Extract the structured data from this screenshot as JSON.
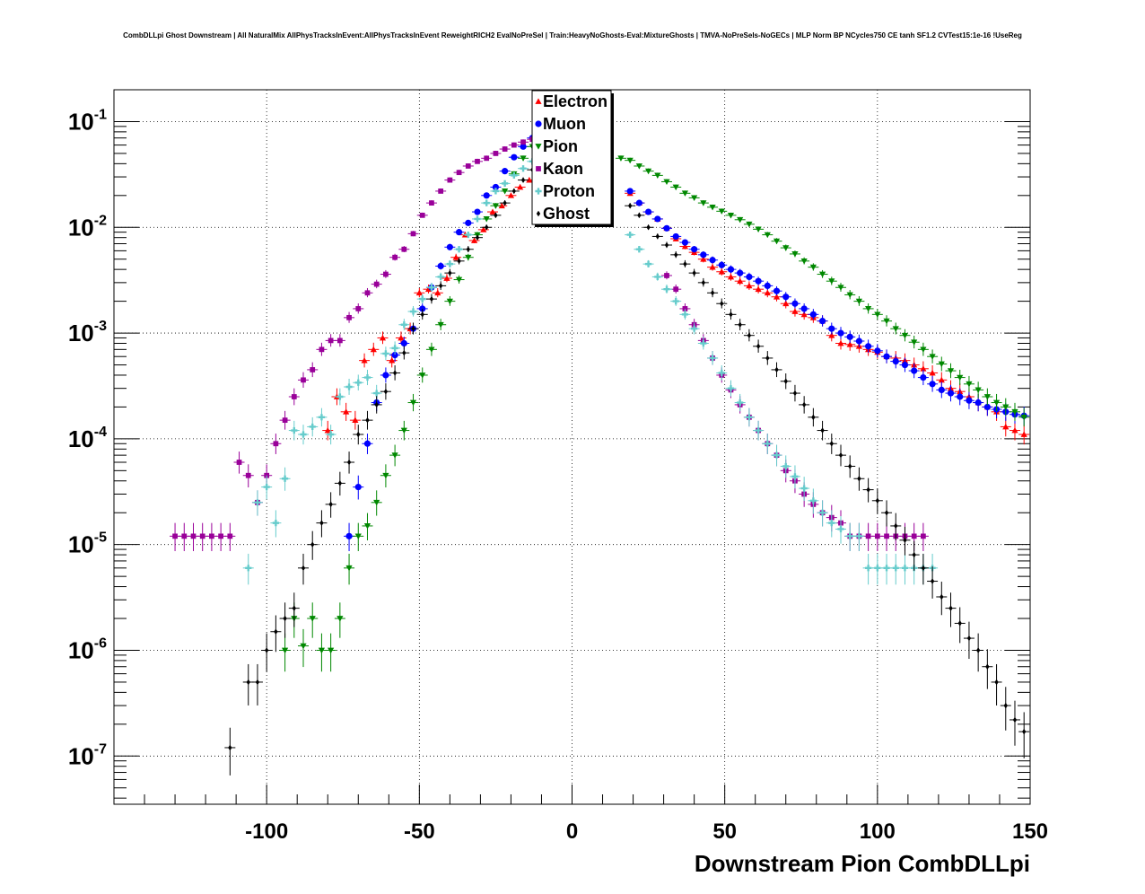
{
  "chart_data": {
    "type": "scatter",
    "title": "CombDLLpi Ghost Downstream | All NaturalMix AllPhysTracksInEvent:AllPhysTracksInEvent ReweightRICH2 EvalNoPreSel | Train:HeavyNoGhosts-Eval:MixtureGhosts | TMVA-NoPreSels-NoGECs | MLP Norm BP NCycles750 CE tanh SF1.2 CVTest15:1e-16 !UseReg",
    "xlabel": "Downstream Pion CombDLLpi",
    "ylabel": "",
    "xlim": [
      -150,
      150
    ],
    "ylim": [
      3.5e-08,
      0.2
    ],
    "y_scale": "log",
    "grid": true,
    "legend_position": "top-center",
    "x_ticks": [
      {
        "value": -100,
        "label": "-100"
      },
      {
        "value": -50,
        "label": "-50"
      },
      {
        "value": 0,
        "label": "0"
      },
      {
        "value": 50,
        "label": "50"
      },
      {
        "value": 100,
        "label": "100"
      },
      {
        "value": 150,
        "label": "150"
      }
    ],
    "y_ticks": [
      {
        "value": 1e-07,
        "base": "10",
        "exp": "-7"
      },
      {
        "value": 1e-06,
        "base": "10",
        "exp": "-6"
      },
      {
        "value": 1e-05,
        "base": "10",
        "exp": "-5"
      },
      {
        "value": 0.0001,
        "base": "10",
        "exp": "-4"
      },
      {
        "value": 0.001,
        "base": "10",
        "exp": "-3"
      },
      {
        "value": 0.01,
        "base": "10",
        "exp": "-2"
      },
      {
        "value": 0.1,
        "base": "10",
        "exp": "-1"
      }
    ],
    "series": [
      {
        "name": "Electron",
        "color": "#ff0000",
        "marker": "triangle-up",
        "x": [
          -80,
          -77,
          -74,
          -71,
          -68,
          -65,
          -62,
          -59,
          -56,
          -53,
          -50,
          -47,
          -44,
          -41,
          -38,
          -35,
          -32,
          -29,
          -26,
          -23,
          -20,
          -17,
          -14,
          -11,
          19,
          22,
          25,
          28,
          31,
          34,
          37,
          40,
          43,
          46,
          49,
          52,
          55,
          58,
          61,
          64,
          67,
          70,
          73,
          76,
          79,
          82,
          85,
          88,
          91,
          94,
          97,
          100,
          103,
          106,
          109,
          112,
          115,
          118,
          121,
          124,
          127,
          130,
          133,
          136,
          139,
          142,
          145,
          148
        ],
        "y": [
          0.00012,
          0.00025,
          0.00018,
          0.00015,
          0.00055,
          0.0007,
          0.0009,
          0.00055,
          0.0009,
          0.0011,
          0.0024,
          0.0026,
          0.0024,
          0.0033,
          0.0052,
          0.0085,
          0.0075,
          0.0095,
          0.014,
          0.016,
          0.02,
          0.024,
          0.028,
          0.032,
          0.021,
          0.017,
          0.014,
          0.012,
          0.0098,
          0.0078,
          0.0066,
          0.0058,
          0.005,
          0.0042,
          0.0038,
          0.0034,
          0.0031,
          0.0028,
          0.0026,
          0.0024,
          0.0022,
          0.0019,
          0.0016,
          0.0015,
          0.0014,
          0.0013,
          0.00095,
          0.0008,
          0.00078,
          0.00075,
          0.0007,
          0.00066,
          0.0006,
          0.00058,
          0.00055,
          0.0005,
          0.00046,
          0.00042,
          0.00036,
          0.0003,
          0.00028,
          0.00025,
          0.00022,
          0.0002,
          0.00018,
          0.00013,
          0.00012,
          0.00011
        ]
      },
      {
        "name": "Muon",
        "color": "#0000ff",
        "marker": "circle",
        "x": [
          -73,
          -70,
          -67,
          -64,
          -61,
          -58,
          -55,
          -52,
          -49,
          -46,
          -43,
          -40,
          -37,
          -34,
          -31,
          -28,
          -25,
          -22,
          -19,
          -16,
          -13,
          -10,
          19,
          22,
          25,
          28,
          31,
          34,
          37,
          40,
          43,
          46,
          49,
          52,
          55,
          58,
          61,
          64,
          67,
          70,
          73,
          76,
          79,
          82,
          85,
          88,
          91,
          94,
          97,
          100,
          103,
          106,
          109,
          112,
          115,
          118,
          121,
          124,
          127,
          130,
          133,
          136,
          139,
          142,
          145,
          148
        ],
        "y": [
          1.2e-05,
          3.5e-05,
          9e-05,
          0.00022,
          0.0004,
          0.00062,
          0.0008,
          0.0011,
          0.0017,
          0.0027,
          0.0043,
          0.0065,
          0.009,
          0.011,
          0.014,
          0.02,
          0.024,
          0.034,
          0.046,
          0.058,
          0.07,
          0.08,
          0.022,
          0.017,
          0.014,
          0.012,
          0.0098,
          0.0082,
          0.0072,
          0.0062,
          0.0055,
          0.0049,
          0.0044,
          0.004,
          0.0037,
          0.0034,
          0.0031,
          0.0028,
          0.0025,
          0.0022,
          0.0019,
          0.0017,
          0.0015,
          0.0013,
          0.0011,
          0.001,
          0.00092,
          0.00084,
          0.00075,
          0.00068,
          0.0006,
          0.00054,
          0.0005,
          0.00044,
          0.00038,
          0.00033,
          0.00029,
          0.00027,
          0.00025,
          0.00023,
          0.00022,
          0.0002,
          0.00019,
          0.00018,
          0.00017,
          0.000165
        ]
      },
      {
        "name": "Pion",
        "color": "#008800",
        "marker": "triangle-down",
        "x": [
          -94,
          -91,
          -88,
          -85,
          -82,
          -79,
          -76,
          -73,
          -70,
          -67,
          -64,
          -61,
          -58,
          -55,
          -52,
          -49,
          -46,
          -43,
          -40,
          -37,
          -34,
          -31,
          -28,
          -25,
          -22,
          -19,
          -16,
          -13,
          -10,
          16,
          19,
          22,
          25,
          28,
          31,
          34,
          37,
          40,
          43,
          46,
          49,
          52,
          55,
          58,
          61,
          64,
          67,
          70,
          73,
          76,
          79,
          82,
          85,
          88,
          91,
          94,
          97,
          100,
          103,
          106,
          109,
          112,
          115,
          118,
          121,
          124,
          127,
          130,
          133,
          136,
          139,
          142,
          145,
          148
        ],
        "y": [
          1e-06,
          2e-06,
          1.1e-06,
          2e-06,
          1e-06,
          1e-06,
          2e-06,
          6e-06,
          1.2e-05,
          1.5e-05,
          2.5e-05,
          4.5e-05,
          7e-05,
          0.00012,
          0.00022,
          0.0004,
          0.0007,
          0.0012,
          0.002,
          0.0032,
          0.0052,
          0.0085,
          0.012,
          0.016,
          0.022,
          0.032,
          0.045,
          0.058,
          0.07,
          0.045,
          0.043,
          0.038,
          0.034,
          0.031,
          0.027,
          0.024,
          0.021,
          0.019,
          0.017,
          0.0155,
          0.0142,
          0.013,
          0.0118,
          0.0107,
          0.0096,
          0.0085,
          0.0074,
          0.0064,
          0.0056,
          0.0048,
          0.0042,
          0.0036,
          0.0031,
          0.0027,
          0.0023,
          0.002,
          0.0017,
          0.0015,
          0.0013,
          0.0011,
          0.00095,
          0.00082,
          0.0007,
          0.0006,
          0.00051,
          0.00044,
          0.00038,
          0.00033,
          0.00029,
          0.00025,
          0.00022,
          0.0002,
          0.00018,
          0.00016
        ]
      },
      {
        "name": "Kaon",
        "color": "#990099",
        "marker": "square",
        "x": [
          -130,
          -127,
          -124,
          -121,
          -118,
          -115,
          -112,
          -109,
          -106,
          -103,
          -100,
          -97,
          -94,
          -91,
          -88,
          -85,
          -82,
          -79,
          -76,
          -73,
          -70,
          -67,
          -64,
          -61,
          -58,
          -55,
          -52,
          -49,
          -46,
          -43,
          -40,
          -37,
          -34,
          -31,
          -28,
          -25,
          -22,
          -19,
          -16,
          -13,
          -10,
          31,
          34,
          37,
          40,
          43,
          46,
          49,
          52,
          55,
          58,
          61,
          64,
          67,
          70,
          73,
          76,
          79,
          82,
          85,
          88,
          91,
          94,
          97,
          100,
          103,
          106,
          109,
          112,
          115
        ],
        "y": [
          1.2e-05,
          1.2e-05,
          1.2e-05,
          1.2e-05,
          1.2e-05,
          1.2e-05,
          1.2e-05,
          6e-05,
          4.5e-05,
          2.5e-05,
          4.5e-05,
          9e-05,
          0.00015,
          0.00025,
          0.00036,
          0.00045,
          0.0007,
          0.00085,
          0.00085,
          0.0014,
          0.0017,
          0.0024,
          0.0029,
          0.0036,
          0.0052,
          0.0062,
          0.0087,
          0.013,
          0.017,
          0.022,
          0.028,
          0.033,
          0.038,
          0.042,
          0.045,
          0.05,
          0.055,
          0.06,
          0.064,
          0.068,
          0.072,
          0.0035,
          0.0026,
          0.0017,
          0.0012,
          0.00085,
          0.00058,
          0.0004,
          0.00029,
          0.00021,
          0.00016,
          0.00012,
          9e-05,
          7e-05,
          5e-05,
          4e-05,
          3e-05,
          2.4e-05,
          2e-05,
          1.8e-05,
          1.6e-05,
          1.2e-05,
          1.2e-05,
          1.2e-05,
          1.2e-05,
          1.2e-05,
          1.2e-05,
          1.2e-05,
          1.2e-05,
          1.2e-05
        ]
      },
      {
        "name": "Proton",
        "color": "#66cccc",
        "marker": "cross",
        "x": [
          -106,
          -103,
          -100,
          -97,
          -94,
          -91,
          -88,
          -85,
          -82,
          -79,
          -76,
          -73,
          -70,
          -67,
          -64,
          -61,
          -58,
          -55,
          -52,
          -49,
          -46,
          -43,
          -40,
          -37,
          -34,
          -31,
          -28,
          -25,
          -22,
          -19,
          -16,
          -13,
          -10,
          19,
          22,
          25,
          28,
          31,
          34,
          37,
          40,
          43,
          46,
          49,
          52,
          55,
          58,
          61,
          64,
          67,
          70,
          73,
          76,
          79,
          82,
          85,
          88,
          91,
          94,
          97,
          100,
          103,
          106,
          109,
          112,
          115,
          118
        ],
        "y": [
          6e-06,
          2.5e-05,
          3.5e-05,
          1.6e-05,
          4.2e-05,
          0.00012,
          0.00011,
          0.00013,
          0.00016,
          0.00011,
          0.00025,
          0.00031,
          0.00034,
          0.00038,
          0.00027,
          0.00064,
          0.00072,
          0.0012,
          0.0016,
          0.0021,
          0.0027,
          0.0034,
          0.0045,
          0.0062,
          0.0085,
          0.012,
          0.017,
          0.022,
          0.026,
          0.031,
          0.036,
          0.042,
          0.048,
          0.0085,
          0.0062,
          0.0045,
          0.0034,
          0.0026,
          0.002,
          0.0015,
          0.0011,
          0.0008,
          0.00058,
          0.00042,
          0.0003,
          0.00022,
          0.00016,
          0.00012,
          9e-05,
          7e-05,
          5.5e-05,
          4.4e-05,
          3.4e-05,
          2.6e-05,
          2e-05,
          1.6e-05,
          1.4e-05,
          1.2e-05,
          1.2e-05,
          6e-06,
          6e-06,
          6e-06,
          6e-06,
          6e-06,
          6e-06,
          6e-06,
          6e-06
        ]
      },
      {
        "name": "Ghost",
        "color": "#000000",
        "marker": "diamond",
        "x": [
          -112,
          -106,
          -103,
          -100,
          -97,
          -94,
          -91,
          -88,
          -85,
          -82,
          -79,
          -76,
          -73,
          -70,
          -67,
          -64,
          -61,
          -58,
          -55,
          -52,
          -49,
          -46,
          -43,
          -40,
          -37,
          -34,
          -31,
          -28,
          -25,
          -22,
          -19,
          -16,
          -13,
          -10,
          19,
          22,
          25,
          28,
          31,
          34,
          37,
          40,
          43,
          46,
          49,
          52,
          55,
          58,
          61,
          64,
          67,
          70,
          73,
          76,
          79,
          82,
          85,
          88,
          91,
          94,
          97,
          100,
          103,
          106,
          109,
          112,
          115,
          118,
          121,
          124,
          127,
          130,
          133,
          136,
          139,
          142,
          145,
          148
        ],
        "y": [
          1.2e-07,
          5e-07,
          5e-07,
          1e-06,
          1.5e-06,
          2e-06,
          2.5e-06,
          6e-06,
          1e-05,
          1.6e-05,
          2.4e-05,
          3.8e-05,
          6e-05,
          0.00011,
          0.00015,
          0.00021,
          0.00028,
          0.00042,
          0.00065,
          0.0011,
          0.0015,
          0.0021,
          0.0028,
          0.0037,
          0.0048,
          0.0062,
          0.008,
          0.01,
          0.013,
          0.017,
          0.022,
          0.028,
          0.035,
          0.042,
          0.016,
          0.013,
          0.01,
          0.0082,
          0.0068,
          0.0055,
          0.0045,
          0.0037,
          0.003,
          0.0024,
          0.0019,
          0.0015,
          0.0012,
          0.00095,
          0.00075,
          0.00058,
          0.00045,
          0.00035,
          0.00027,
          0.00021,
          0.00016,
          0.00012,
          9e-05,
          7e-05,
          5.5e-05,
          4.2e-05,
          3.3e-05,
          2.6e-05,
          2e-05,
          1.5e-05,
          1.1e-05,
          8e-06,
          6e-06,
          4.5e-06,
          3.2e-06,
          2.5e-06,
          1.8e-06,
          1.3e-06,
          1e-06,
          7e-07,
          5e-07,
          3e-07,
          2.2e-07,
          1.7e-07
        ]
      }
    ]
  }
}
